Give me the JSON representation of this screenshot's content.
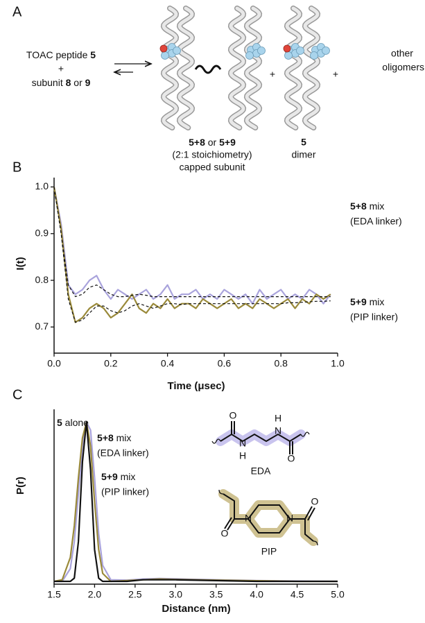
{
  "diagram": {
    "panel_labels": [
      "A",
      "B",
      "C"
    ],
    "reactant1": [
      "TOAC peptide ",
      "5"
    ],
    "plus_signs": [
      "+",
      "+",
      "+"
    ],
    "reactant2": [
      "subunit ",
      "8",
      " or ",
      "9"
    ],
    "product1": {
      "name": [
        "5+8",
        " or ",
        "5+9"
      ],
      "lines": [
        "(2:1 stoichiometry)",
        "capped subunit"
      ]
    },
    "product2": {
      "name": "5",
      "label": "dimer"
    },
    "product3": [
      "other",
      "oligomers"
    ]
  },
  "chart_data": [
    {
      "type": "line",
      "x_label": "Time (μsec)",
      "y_label": "I(t)",
      "x": [
        0,
        0.025,
        0.05,
        0.075,
        0.1,
        0.125,
        0.15,
        0.175,
        0.2,
        0.225,
        0.25,
        0.275,
        0.3,
        0.325,
        0.35,
        0.375,
        0.4,
        0.425,
        0.45,
        0.475,
        0.5,
        0.525,
        0.55,
        0.575,
        0.6,
        0.625,
        0.65,
        0.675,
        0.7,
        0.725,
        0.75,
        0.775,
        0.8,
        0.825,
        0.85,
        0.875,
        0.9,
        0.925,
        0.95,
        0.975
      ],
      "series": [
        {
          "color": "#a9a3dc",
          "style": "solid",
          "values": [
            1.0,
            0.92,
            0.79,
            0.77,
            0.78,
            0.8,
            0.81,
            0.78,
            0.76,
            0.78,
            0.77,
            0.76,
            0.77,
            0.78,
            0.76,
            0.77,
            0.79,
            0.76,
            0.77,
            0.77,
            0.78,
            0.76,
            0.77,
            0.76,
            0.78,
            0.77,
            0.76,
            0.77,
            0.75,
            0.78,
            0.76,
            0.77,
            0.78,
            0.76,
            0.77,
            0.76,
            0.78,
            0.77,
            0.75,
            0.77
          ]
        },
        {
          "color": "#9a8a3a",
          "style": "solid",
          "values": [
            1.0,
            0.91,
            0.77,
            0.71,
            0.72,
            0.74,
            0.75,
            0.74,
            0.72,
            0.73,
            0.75,
            0.77,
            0.74,
            0.73,
            0.75,
            0.74,
            0.76,
            0.74,
            0.75,
            0.75,
            0.74,
            0.76,
            0.75,
            0.74,
            0.75,
            0.76,
            0.74,
            0.75,
            0.74,
            0.76,
            0.75,
            0.74,
            0.75,
            0.76,
            0.74,
            0.76,
            0.75,
            0.77,
            0.76,
            0.77
          ]
        },
        {
          "color": "#111111",
          "style": "dashed",
          "values": [
            1.0,
            0.9,
            0.79,
            0.765,
            0.77,
            0.785,
            0.79,
            0.78,
            0.77,
            0.765,
            0.765,
            0.768,
            0.77,
            0.768,
            0.765,
            0.765,
            0.765,
            0.765,
            0.765,
            0.765,
            0.765,
            0.765,
            0.765,
            0.765,
            0.765,
            0.765,
            0.765,
            0.765,
            0.765,
            0.765,
            0.765,
            0.765,
            0.765,
            0.765,
            0.765,
            0.765,
            0.765,
            0.765,
            0.765,
            0.765
          ]
        },
        {
          "color": "#111111",
          "style": "dashed",
          "values": [
            1.0,
            0.9,
            0.76,
            0.71,
            0.715,
            0.73,
            0.745,
            0.745,
            0.735,
            0.73,
            0.735,
            0.745,
            0.75,
            0.745,
            0.74,
            0.745,
            0.75,
            0.75,
            0.748,
            0.75,
            0.75,
            0.75,
            0.75,
            0.75,
            0.75,
            0.75,
            0.75,
            0.75,
            0.75,
            0.75,
            0.75,
            0.75,
            0.75,
            0.752,
            0.752,
            0.753,
            0.754,
            0.755,
            0.755,
            0.756
          ]
        }
      ],
      "xlim": [
        0,
        1
      ],
      "ylim": [
        0.65,
        1.02
      ],
      "xticks": [
        {
          "value": 0,
          "label": "0.0"
        },
        0.2,
        0.4,
        0.6,
        0.8,
        {
          "value": 1,
          "label": "1.0"
        }
      ],
      "yticks": [
        0.7,
        0.8,
        0.9,
        {
          "value": 1,
          "label": "1.0"
        }
      ],
      "annotations": [
        {
          "runs": [
            "5+8",
            " mix"
          ],
          "note": "(EDA linker)"
        },
        {
          "runs": [
            "5+9",
            " mix"
          ],
          "note": "(PIP linker)"
        }
      ]
    },
    {
      "type": "line",
      "x_label": "Distance (nm)",
      "y_label": "P(r)",
      "x": [
        1.5,
        1.6,
        1.7,
        1.75,
        1.8,
        1.85,
        1.9,
        1.95,
        2.0,
        2.05,
        2.1,
        2.2,
        2.4,
        2.6,
        2.8,
        3.0,
        3.5,
        4.0,
        4.5,
        5.0
      ],
      "series": [
        {
          "color": "#a9a3dc",
          "style": "solid",
          "values": [
            0,
            0,
            0.08,
            0.25,
            0.55,
            0.85,
            1.0,
            0.95,
            0.65,
            0.3,
            0.1,
            0.01,
            0.008,
            0.015,
            0.018,
            0.016,
            0.01,
            0.005,
            0.002,
            0
          ]
        },
        {
          "color": "#9a8a3a",
          "style": "solid",
          "values": [
            0,
            0.01,
            0.15,
            0.35,
            0.65,
            0.9,
            1.0,
            0.85,
            0.5,
            0.2,
            0.05,
            0,
            0.005,
            0.01,
            0.015,
            0.012,
            0.008,
            0.004,
            0,
            0
          ]
        },
        {
          "color": "#111111",
          "style": "solid",
          "values": [
            0,
            0,
            0,
            0.02,
            0.25,
            0.75,
            1.0,
            0.7,
            0.2,
            0.02,
            0,
            0,
            0,
            0.01,
            0.01,
            0.01,
            0.005,
            0,
            0,
            0
          ]
        }
      ],
      "xlim": [
        1.5,
        5
      ],
      "ylim": [
        0,
        1.08
      ],
      "xticks": [
        1.5,
        {
          "value": 2,
          "label": "2.0"
        },
        2.5,
        {
          "value": 3,
          "label": "3.0"
        },
        3.5,
        {
          "value": 4,
          "label": "4.0"
        },
        4.5,
        {
          "value": 5,
          "label": "5.0"
        }
      ],
      "annotations": [
        {
          "runs": [
            "5",
            " alone"
          ]
        },
        {
          "runs": [
            "5+8",
            " mix"
          ],
          "note": "(EDA linker)"
        },
        {
          "runs": [
            "5+9",
            " mix"
          ],
          "note": "(PIP linker)"
        }
      ],
      "structures": [
        {
          "name": "EDA",
          "atoms": [
            "O",
            "N",
            "H",
            "N",
            "H",
            "O"
          ]
        },
        {
          "name": "PIP",
          "atoms": [
            "O",
            "N",
            "N",
            "O"
          ]
        }
      ]
    }
  ]
}
